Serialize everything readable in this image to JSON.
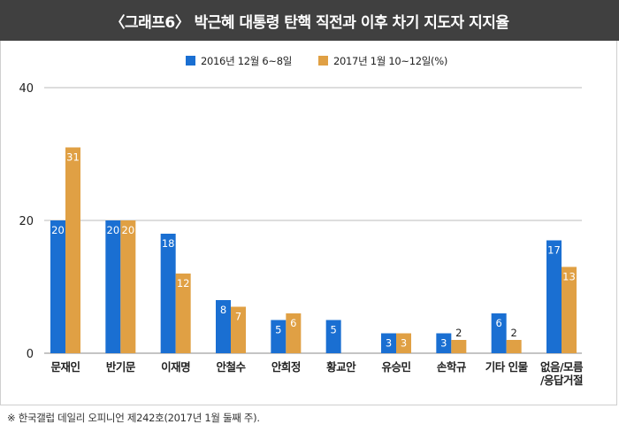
{
  "header": {
    "title": "〈그래프6〉 박근혜 대통령 탄핵 직전과 이후 차기 지도자 지지율"
  },
  "footnote": "※ 한국갤럽 데일리 오피니언 제242호(2017년 1월 둘째 주).",
  "colors": {
    "series_2016": "#1a6fd2",
    "series_2017": "#e0a044",
    "header_bg": "#404040",
    "grid": "#bbbbbb"
  },
  "chart_data": {
    "type": "bar",
    "title": "〈그래프6〉 박근혜 대통령 탄핵 직전과 이후 차기 지도자 지지율",
    "xlabel": "",
    "ylabel": "",
    "ylim": [
      0,
      40
    ],
    "yticks": [
      "0",
      "20",
      "40"
    ],
    "grid": true,
    "legend_position": "top-center",
    "categories": [
      [
        "문재인"
      ],
      [
        "반기문"
      ],
      [
        "이재명"
      ],
      [
        "안철수"
      ],
      [
        "안희정"
      ],
      [
        "황교안"
      ],
      [
        "유승민"
      ],
      [
        "손학규"
      ],
      [
        "기타 인물"
      ],
      [
        "없음/모름",
        "/응답거절"
      ]
    ],
    "series": [
      {
        "name": "2016년 12월 6~8일",
        "color": "#1a6fd2",
        "values": [
          20,
          20,
          18,
          8,
          5,
          5,
          3,
          3,
          6,
          17
        ],
        "labels": [
          "20",
          "20",
          "18",
          "8",
          "5",
          "5",
          "3",
          "3",
          "6",
          "17"
        ]
      },
      {
        "name": "2017년 1월 10~12일(%)",
        "color": "#e0a044",
        "values": [
          31,
          20,
          12,
          7,
          6,
          null,
          3,
          2,
          2,
          13
        ],
        "labels": [
          "31",
          "20",
          "12",
          "7",
          "6",
          "",
          "3",
          "2",
          "2",
          "13"
        ]
      }
    ]
  }
}
